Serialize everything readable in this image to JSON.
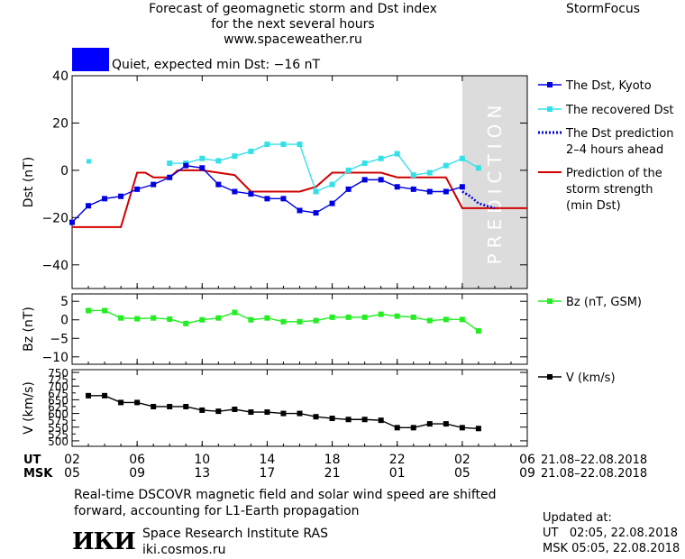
{
  "header": {
    "title_lines": [
      "Forecast of geomagnetic storm and Dst index",
      "for the next several hours",
      "www.spaceweather.ru"
    ],
    "brand": "StormFocus"
  },
  "status": {
    "text": "Quiet, expected min Dst: −16 nT",
    "color": "#0000ff"
  },
  "colors": {
    "dst_kyoto": "#0000e0",
    "dst_recovered": "#33e0e8",
    "dst_prediction": "#0000e0",
    "storm_strength": "#d00000",
    "bz": "#22ee22",
    "v": "#000000",
    "prediction_band": "#dcdcdc"
  },
  "chart_data": [
    {
      "type": "line",
      "panel": "dst",
      "ylabel": "Dst (nT)",
      "ylim": [
        -50,
        40
      ],
      "yticks": [
        40,
        20,
        0,
        -20,
        -40
      ],
      "xlim": [
        0,
        28
      ],
      "band_label": "PREDICTION",
      "band_x": [
        24,
        28
      ],
      "legend": [
        "The Dst, Kyoto",
        "The recovered Dst",
        "The Dst prediction\n2–4 hours ahead",
        "Prediction of the\nstorm strength\n(min Dst)"
      ],
      "series": [
        {
          "name": "The Dst, Kyoto",
          "x": [
            0,
            1,
            2,
            3,
            4,
            5,
            6,
            7,
            8,
            9,
            10,
            11,
            12,
            13,
            14,
            15,
            16,
            17,
            18,
            19,
            20,
            21,
            22,
            23,
            24
          ],
          "y": [
            -22,
            -15,
            -12,
            -11,
            -8,
            -6,
            -3,
            2,
            1,
            -6,
            -9,
            -10,
            -12,
            -12,
            -17,
            -18,
            -14,
            -8,
            -4,
            -4,
            -7,
            -8,
            -9,
            -9,
            -7
          ]
        },
        {
          "name": "The recovered Dst",
          "x": [
            1,
            6,
            7,
            8,
            9,
            10,
            11,
            12,
            13,
            14,
            15,
            16,
            17,
            18,
            19,
            20,
            21,
            22,
            23,
            24,
            25
          ],
          "y": [
            4,
            3,
            3,
            5,
            4,
            6,
            8,
            11,
            11,
            11,
            -9,
            -6,
            0,
            3,
            5,
            7,
            -2,
            -1,
            2,
            5,
            1
          ]
        },
        {
          "name": "The Dst prediction 2–4 hours ahead",
          "x": [
            24,
            24.5,
            25,
            25.5,
            26
          ],
          "y": [
            -9,
            -11,
            -14,
            -15,
            -16
          ]
        },
        {
          "name": "Prediction of the storm strength (min Dst)",
          "x": [
            0,
            3,
            4,
            4.5,
            5,
            6,
            6.5,
            8,
            9,
            10,
            11,
            12,
            14,
            15,
            16,
            18,
            19,
            20,
            21,
            22,
            23,
            24,
            28
          ],
          "y": [
            -24,
            -24,
            -1,
            -1,
            -3,
            -3,
            0,
            0,
            -1,
            -2,
            -9,
            -9,
            -9,
            -7,
            -1,
            -1,
            -1,
            -3,
            -3,
            -3,
            -3,
            -16,
            -16
          ]
        }
      ]
    },
    {
      "type": "line",
      "panel": "bz",
      "ylabel": "Bz (nT)",
      "ylim": [
        -12,
        7
      ],
      "yticks": [
        5,
        0,
        -5,
        -10
      ],
      "xlim": [
        0,
        28
      ],
      "legend": [
        "Bz (nT, GSM)"
      ],
      "series": [
        {
          "name": "Bz (nT, GSM)",
          "x": [
            1,
            2,
            3,
            4,
            5,
            6,
            7,
            8,
            9,
            10,
            11,
            12,
            13,
            14,
            15,
            16,
            17,
            18,
            19,
            20,
            21,
            22,
            23,
            24,
            25
          ],
          "y": [
            2.5,
            2.5,
            0.5,
            0.3,
            0.5,
            0.2,
            -1,
            0,
            0.5,
            2,
            0,
            0.5,
            -0.5,
            -0.5,
            -0.2,
            0.7,
            0.7,
            0.7,
            1.5,
            1,
            0.7,
            -0.2,
            0.1,
            0.1,
            -3
          ]
        }
      ]
    },
    {
      "type": "line",
      "panel": "v",
      "ylabel": "V (km/s)",
      "ylim": [
        480,
        760
      ],
      "yticks": [
        750,
        700,
        650,
        600,
        550,
        500
      ],
      "ytick_labels_extra": [
        725,
        675,
        625,
        575,
        525
      ],
      "xlim": [
        0,
        28
      ],
      "legend": [
        "V (km/s)"
      ],
      "series": [
        {
          "name": "V (km/s)",
          "x": [
            1,
            2,
            3,
            4,
            5,
            6,
            7,
            8,
            9,
            10,
            11,
            12,
            13,
            14,
            15,
            16,
            17,
            18,
            19,
            20,
            21,
            22,
            23,
            24,
            25
          ],
          "y": [
            665,
            665,
            640,
            640,
            625,
            625,
            625,
            612,
            608,
            615,
            605,
            605,
            600,
            600,
            588,
            582,
            578,
            578,
            575,
            548,
            548,
            562,
            562,
            548,
            545
          ]
        }
      ]
    }
  ],
  "xaxis": {
    "ut_label": "UT",
    "msk_label": "MSK",
    "ut_ticks": [
      "02",
      "06",
      "10",
      "14",
      "18",
      "22",
      "02",
      "06"
    ],
    "msk_ticks": [
      "05",
      "09",
      "13",
      "17",
      "21",
      "01",
      "05",
      "09"
    ],
    "tick_x": [
      0,
      4,
      8,
      12,
      16,
      20,
      24,
      28
    ],
    "date_range_ut": "21.08–22.08.2018",
    "date_range_msk": "21.08–22.08.2018"
  },
  "footer": {
    "note": "Real-time DSCOVR magnetic field and solar wind speed are shifted forward, accounting for L1-Earth propagation",
    "logo": "ИКИ",
    "institute_lines": [
      "Space Research Institute RAS",
      "iki.cosmos.ru"
    ],
    "updated_label": "Updated at:",
    "updated_ut": "UT   02:05, 22.08.2018",
    "updated_msk": "MSK 05:05, 22.08.2018"
  }
}
